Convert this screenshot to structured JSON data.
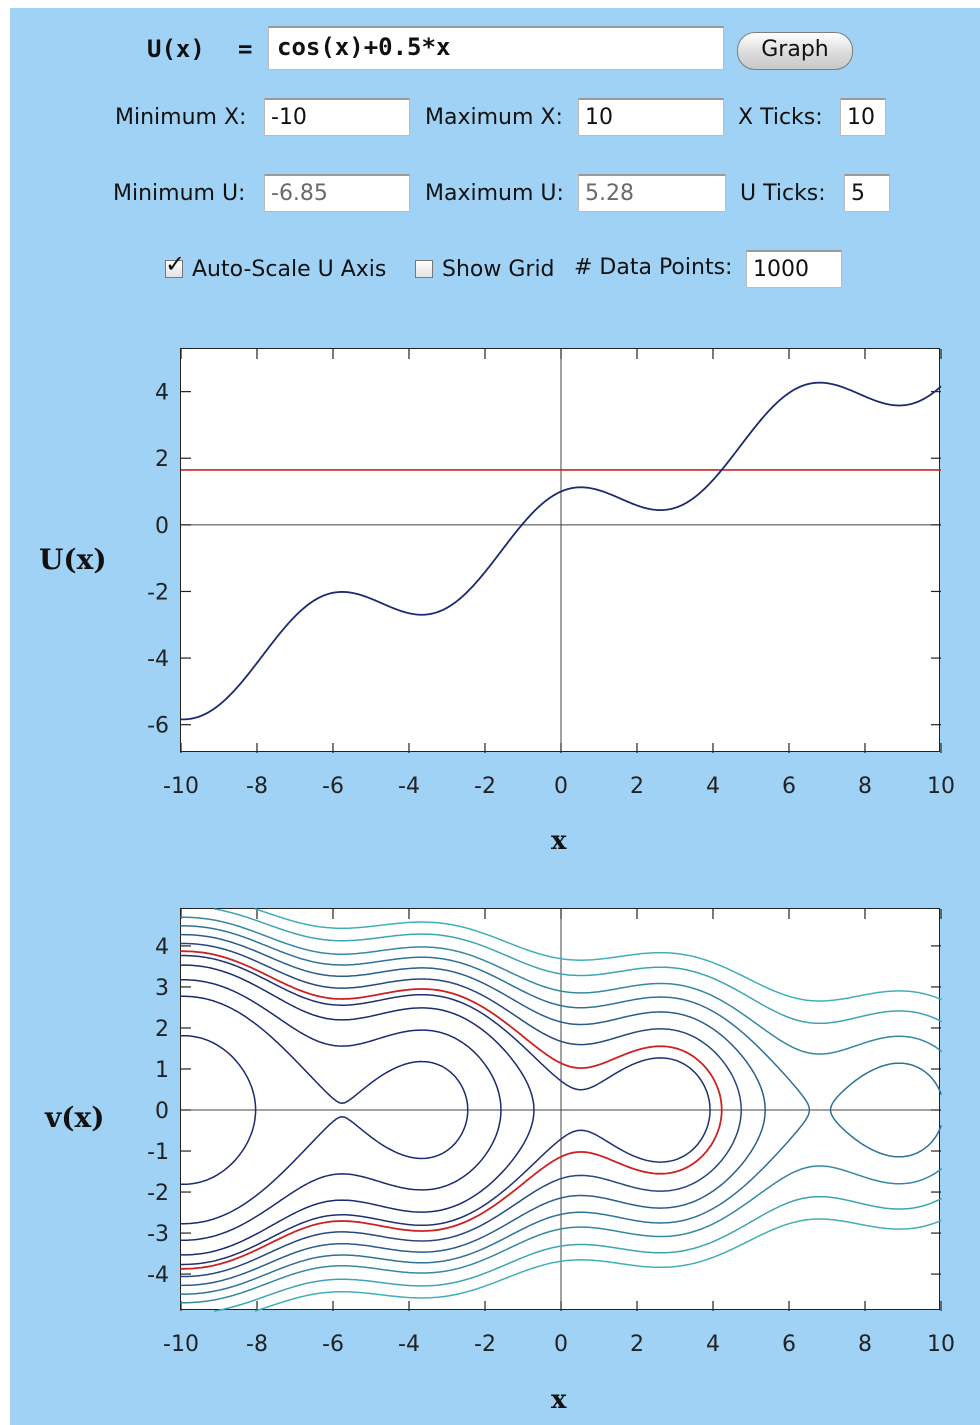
{
  "formula": {
    "name": "U(x)",
    "equals": "=",
    "value": "cos(x)+0.5*x",
    "graph_button": "Graph"
  },
  "controls": {
    "min_x_label": "Minimum X:",
    "min_x": "-10",
    "max_x_label": "Maximum X:",
    "max_x": "10",
    "x_ticks_label": "X Ticks:",
    "x_ticks": "10",
    "min_u_label": "Minimum U:",
    "min_u": "-6.85",
    "max_u_label": "Maximum U:",
    "max_u": "5.28",
    "u_ticks_label": "U Ticks:",
    "u_ticks": "5",
    "autoscale_label": "Auto-Scale U Axis",
    "autoscale_checked": true,
    "show_grid_label": "Show Grid",
    "show_grid_checked": false,
    "data_points_label": "# Data Points:",
    "data_points": "1000"
  },
  "colors": {
    "background": "#a0d2f5",
    "curve": "#1c2a70",
    "energy_line": "#cc2222",
    "contour_light": "#40b0b8"
  },
  "chart_data": [
    {
      "type": "line",
      "title": "",
      "xlabel": "x",
      "ylabel": "U(x)",
      "xlim": [
        -10,
        10
      ],
      "ylim": [
        -6.85,
        5.28
      ],
      "x_ticks": [
        "-10",
        "-8",
        "-6",
        "-4",
        "-2",
        "0",
        "2",
        "4",
        "6",
        "8",
        "10"
      ],
      "y_ticks": [
        "4",
        "2",
        "0",
        "-2",
        "-4",
        "-6"
      ],
      "series": [
        {
          "function": "cos(x)+0.5*x",
          "x": [
            -10,
            -9,
            -8,
            -7,
            -6,
            -5,
            -4,
            -3,
            -2,
            -1,
            0,
            1,
            2,
            3,
            4,
            5,
            6,
            7,
            8,
            9,
            10
          ],
          "values": [
            -5.84,
            -5.41,
            -4.15,
            -2.75,
            -2.04,
            -2.22,
            -2.65,
            -2.49,
            -1.42,
            0.04,
            1.0,
            1.04,
            0.58,
            0.51,
            1.35,
            2.78,
            3.96,
            4.25,
            3.85,
            3.59,
            4.16
          ]
        }
      ],
      "hlines": [
        {
          "y": 1.65,
          "color": "#cc2222"
        }
      ],
      "grid": false
    },
    {
      "type": "line",
      "title": "",
      "xlabel": "x",
      "ylabel": "v(x)",
      "xlim": [
        -10,
        10
      ],
      "ylim": [
        -4.9,
        4.9
      ],
      "x_ticks": [
        "-10",
        "-8",
        "-6",
        "-4",
        "-2",
        "0",
        "2",
        "4",
        "6",
        "8",
        "10"
      ],
      "y_ticks": [
        "4",
        "3",
        "2",
        "1",
        "0",
        "-1",
        "-2",
        "-3",
        "-4"
      ],
      "potential": "cos(x)+0.5*x",
      "contour_energies": [
        -4.2,
        -2.0,
        -0.8,
        0.4,
        1.25,
        2.4,
        3.3,
        4.236,
        5.2,
        6.5,
        7.8
      ],
      "highlighted_energy": 1.65,
      "grid": false
    }
  ]
}
